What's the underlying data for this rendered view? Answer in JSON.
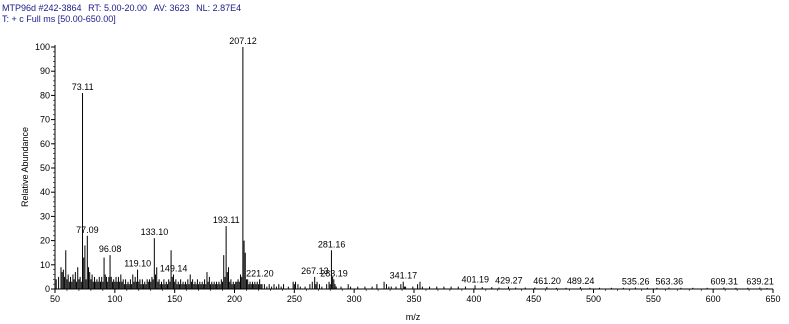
{
  "header": {
    "line1_id": "MTP96d #242-3864",
    "rt_label": "RT:",
    "rt_value": "5.00-20.00",
    "av_label": "AV:",
    "av_value": "3623",
    "nl_label": "NL:",
    "nl_value": "2.87E4",
    "line2": "T: + c Full ms [50.00-650.00]"
  },
  "colors": {
    "header_text": "#1a1a8a",
    "peak": "#000000",
    "label_underline": "#2e9e2e"
  },
  "chart_data": {
    "type": "bar",
    "xlabel": "m/z",
    "ylabel": "Relative Abundance",
    "xlim": [
      50,
      650
    ],
    "ylim": [
      0,
      100
    ],
    "xticks": [
      50,
      100,
      150,
      200,
      250,
      300,
      350,
      400,
      450,
      500,
      550,
      600,
      650
    ],
    "yticks": [
      0,
      10,
      20,
      30,
      40,
      50,
      60,
      70,
      80,
      90,
      100
    ],
    "grid": false,
    "labeled_peaks": [
      {
        "x": 73.11,
        "y": 81,
        "label": "73.11"
      },
      {
        "x": 77.09,
        "y": 22,
        "label": "77.09"
      },
      {
        "x": 96.08,
        "y": 14,
        "label": "96.08"
      },
      {
        "x": 119.1,
        "y": 8,
        "label": "119.10"
      },
      {
        "x": 133.1,
        "y": 21,
        "label": "133.10"
      },
      {
        "x": 149.14,
        "y": 6,
        "label": "149.14"
      },
      {
        "x": 193.11,
        "y": 26,
        "label": "193.11"
      },
      {
        "x": 207.12,
        "y": 100,
        "label": "207.12"
      },
      {
        "x": 221.2,
        "y": 4,
        "label": "221.20"
      },
      {
        "x": 267.13,
        "y": 5,
        "label": "267.13"
      },
      {
        "x": 281.16,
        "y": 16,
        "label": "281.16"
      },
      {
        "x": 283.19,
        "y": 4,
        "label": "283.19"
      },
      {
        "x": 341.17,
        "y": 3,
        "label": "341.17"
      },
      {
        "x": 401.19,
        "y": 1.5,
        "label": "401.19"
      },
      {
        "x": 429.27,
        "y": 1,
        "label": "429.27"
      },
      {
        "x": 461.2,
        "y": 0.8,
        "label": "461.20"
      },
      {
        "x": 489.24,
        "y": 0.8,
        "label": "489.24"
      },
      {
        "x": 535.26,
        "y": 0.6,
        "label": "535.26"
      },
      {
        "x": 563.36,
        "y": 0.6,
        "label": "563.36"
      },
      {
        "x": 609.31,
        "y": 0.6,
        "label": "609.31"
      },
      {
        "x": 639.21,
        "y": 0.6,
        "label": "639.21"
      }
    ],
    "peaks": [
      [
        51,
        4
      ],
      [
        53,
        5
      ],
      [
        55,
        9
      ],
      [
        56,
        7
      ],
      [
        57,
        8
      ],
      [
        58,
        5
      ],
      [
        59,
        16
      ],
      [
        60,
        4
      ],
      [
        61,
        6
      ],
      [
        62,
        3
      ],
      [
        63,
        5
      ],
      [
        64,
        3
      ],
      [
        65,
        6
      ],
      [
        66,
        4
      ],
      [
        67,
        7
      ],
      [
        68,
        3
      ],
      [
        69,
        9
      ],
      [
        70,
        4
      ],
      [
        71,
        5
      ],
      [
        72,
        3
      ],
      [
        73,
        81
      ],
      [
        74,
        13
      ],
      [
        75,
        18
      ],
      [
        76,
        4
      ],
      [
        77,
        22
      ],
      [
        78,
        9
      ],
      [
        79,
        7
      ],
      [
        80,
        4
      ],
      [
        81,
        6
      ],
      [
        82,
        3
      ],
      [
        83,
        5
      ],
      [
        84,
        3
      ],
      [
        85,
        4
      ],
      [
        86,
        3
      ],
      [
        87,
        5
      ],
      [
        88,
        3
      ],
      [
        89,
        5
      ],
      [
        90,
        3
      ],
      [
        91,
        13
      ],
      [
        92,
        6
      ],
      [
        93,
        5
      ],
      [
        94,
        3
      ],
      [
        95,
        5
      ],
      [
        96,
        14
      ],
      [
        97,
        5
      ],
      [
        98,
        3
      ],
      [
        99,
        4
      ],
      [
        100,
        3
      ],
      [
        101,
        5
      ],
      [
        102,
        3
      ],
      [
        103,
        5
      ],
      [
        104,
        3
      ],
      [
        105,
        6
      ],
      [
        106,
        3
      ],
      [
        107,
        4
      ],
      [
        108,
        2
      ],
      [
        109,
        4
      ],
      [
        110,
        2
      ],
      [
        111,
        3
      ],
      [
        112,
        2
      ],
      [
        113,
        4
      ],
      [
        114,
        2
      ],
      [
        115,
        6
      ],
      [
        116,
        3
      ],
      [
        117,
        5
      ],
      [
        118,
        3
      ],
      [
        119,
        8
      ],
      [
        120,
        3
      ],
      [
        121,
        4
      ],
      [
        122,
        2
      ],
      [
        123,
        4
      ],
      [
        124,
        2
      ],
      [
        125,
        3
      ],
      [
        126,
        2
      ],
      [
        127,
        4
      ],
      [
        128,
        3
      ],
      [
        129,
        4
      ],
      [
        130,
        3
      ],
      [
        131,
        5
      ],
      [
        132,
        4
      ],
      [
        133,
        21
      ],
      [
        134,
        6
      ],
      [
        135,
        9
      ],
      [
        136,
        3
      ],
      [
        137,
        4
      ],
      [
        138,
        2
      ],
      [
        139,
        3
      ],
      [
        140,
        2
      ],
      [
        141,
        4
      ],
      [
        142,
        2
      ],
      [
        143,
        3
      ],
      [
        144,
        2
      ],
      [
        145,
        4
      ],
      [
        146,
        3
      ],
      [
        147,
        16
      ],
      [
        148,
        5
      ],
      [
        149,
        6
      ],
      [
        150,
        3
      ],
      [
        151,
        4
      ],
      [
        152,
        2
      ],
      [
        153,
        3
      ],
      [
        154,
        2
      ],
      [
        155,
        4
      ],
      [
        156,
        2
      ],
      [
        157,
        3
      ],
      [
        158,
        2
      ],
      [
        159,
        3
      ],
      [
        160,
        2
      ],
      [
        161,
        4
      ],
      [
        162,
        2
      ],
      [
        163,
        6
      ],
      [
        164,
        3
      ],
      [
        165,
        4
      ],
      [
        166,
        2
      ],
      [
        167,
        3
      ],
      [
        168,
        2
      ],
      [
        169,
        4
      ],
      [
        170,
        2
      ],
      [
        171,
        3
      ],
      [
        172,
        2
      ],
      [
        173,
        3
      ],
      [
        174,
        2
      ],
      [
        175,
        4
      ],
      [
        176,
        2
      ],
      [
        177,
        7
      ],
      [
        178,
        3
      ],
      [
        179,
        5
      ],
      [
        180,
        2
      ],
      [
        181,
        3
      ],
      [
        182,
        2
      ],
      [
        183,
        3
      ],
      [
        184,
        2
      ],
      [
        185,
        3
      ],
      [
        186,
        2
      ],
      [
        187,
        3
      ],
      [
        188,
        2
      ],
      [
        189,
        4
      ],
      [
        190,
        3
      ],
      [
        191,
        14
      ],
      [
        192,
        5
      ],
      [
        193,
        26
      ],
      [
        194,
        7
      ],
      [
        195,
        9
      ],
      [
        196,
        3
      ],
      [
        197,
        4
      ],
      [
        198,
        2
      ],
      [
        199,
        3
      ],
      [
        200,
        2
      ],
      [
        201,
        3
      ],
      [
        202,
        3
      ],
      [
        203,
        4
      ],
      [
        204,
        3
      ],
      [
        205,
        6
      ],
      [
        206,
        5
      ],
      [
        207,
        100
      ],
      [
        208,
        20
      ],
      [
        209,
        15
      ],
      [
        210,
        4
      ],
      [
        211,
        4
      ],
      [
        212,
        2
      ],
      [
        213,
        3
      ],
      [
        214,
        2
      ],
      [
        215,
        3
      ],
      [
        216,
        2
      ],
      [
        217,
        3
      ],
      [
        218,
        2
      ],
      [
        219,
        3
      ],
      [
        220,
        2
      ],
      [
        221,
        4
      ],
      [
        222,
        2
      ],
      [
        223,
        2
      ],
      [
        225,
        2
      ],
      [
        227,
        1
      ],
      [
        229,
        2
      ],
      [
        231,
        1
      ],
      [
        233,
        2
      ],
      [
        235,
        1
      ],
      [
        237,
        2
      ],
      [
        239,
        1
      ],
      [
        241,
        2
      ],
      [
        245,
        1
      ],
      [
        249,
        3
      ],
      [
        250,
        2
      ],
      [
        251,
        3
      ],
      [
        253,
        2
      ],
      [
        255,
        1
      ],
      [
        259,
        1
      ],
      [
        263,
        2
      ],
      [
        265,
        3
      ],
      [
        267,
        5
      ],
      [
        268,
        2
      ],
      [
        269,
        3
      ],
      [
        271,
        2
      ],
      [
        273,
        1
      ],
      [
        277,
        2
      ],
      [
        279,
        3
      ],
      [
        280,
        2
      ],
      [
        281,
        16
      ],
      [
        282,
        5
      ],
      [
        283,
        4
      ],
      [
        284,
        2
      ],
      [
        285,
        1
      ],
      [
        289,
        1
      ],
      [
        295,
        2
      ],
      [
        297,
        1
      ],
      [
        303,
        1
      ],
      [
        309,
        1
      ],
      [
        315,
        1
      ],
      [
        319,
        2
      ],
      [
        325,
        3
      ],
      [
        327,
        2
      ],
      [
        329,
        1
      ],
      [
        331,
        1
      ],
      [
        335,
        1
      ],
      [
        339,
        2
      ],
      [
        341,
        3
      ],
      [
        342,
        1
      ],
      [
        343,
        1
      ],
      [
        349,
        1
      ],
      [
        353,
        2
      ],
      [
        355,
        3
      ],
      [
        357,
        1
      ],
      [
        363,
        1
      ],
      [
        369,
        1
      ],
      [
        375,
        1
      ],
      [
        381,
        1
      ],
      [
        387,
        1
      ],
      [
        393,
        1
      ],
      [
        401,
        1.5
      ],
      [
        407,
        0.8
      ],
      [
        415,
        0.8
      ],
      [
        421,
        0.6
      ],
      [
        429,
        1
      ],
      [
        435,
        0.6
      ],
      [
        443,
        0.6
      ],
      [
        451,
        0.6
      ],
      [
        461,
        0.8
      ],
      [
        469,
        0.5
      ],
      [
        477,
        0.5
      ],
      [
        489,
        0.8
      ],
      [
        497,
        0.5
      ],
      [
        505,
        0.5
      ],
      [
        515,
        0.5
      ],
      [
        525,
        0.5
      ],
      [
        535,
        0.6
      ],
      [
        545,
        0.5
      ],
      [
        553,
        0.5
      ],
      [
        563,
        0.6
      ],
      [
        573,
        0.5
      ],
      [
        583,
        0.5
      ],
      [
        595,
        0.5
      ],
      [
        609,
        0.6
      ],
      [
        619,
        0.5
      ],
      [
        629,
        0.5
      ],
      [
        639,
        0.6
      ],
      [
        645,
        0.4
      ]
    ]
  }
}
